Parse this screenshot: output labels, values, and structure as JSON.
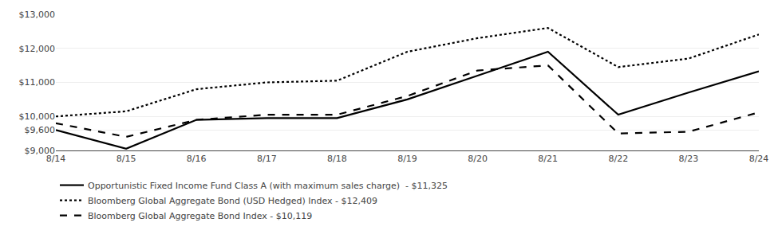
{
  "chart_data": {
    "type": "line",
    "categories": [
      "8/14",
      "8/15",
      "8/16",
      "8/17",
      "8/18",
      "8/19",
      "8/20",
      "8/21",
      "8/22",
      "8/23",
      "8/24"
    ],
    "series": [
      {
        "name": "Opportunistic Fixed Income Fund Class A (with maximum sales charge)  - $11,325",
        "color": "#000000",
        "line_style": "solid",
        "values": [
          9600,
          9050,
          9900,
          9950,
          9950,
          10500,
          11200,
          11900,
          10050,
          10700,
          11325
        ]
      },
      {
        "name": "Bloomberg Global Aggregate Bond (USD Hedged) Index - $12,409",
        "color": "#000000",
        "line_style": "dotted",
        "values": [
          10000,
          10150,
          10800,
          11000,
          11050,
          11900,
          12300,
          12600,
          11450,
          11700,
          12409
        ]
      },
      {
        "name": "Bloomberg Global Aggregate Bond Index - $10,119",
        "color": "#000000",
        "line_style": "dashed",
        "values": [
          9800,
          9400,
          9900,
          10050,
          10050,
          10600,
          11350,
          11500,
          9500,
          9550,
          10119
        ]
      }
    ],
    "ylim": [
      9000,
      13000
    ],
    "yticks": [
      {
        "value": 9000,
        "label": "$9,000"
      },
      {
        "value": 9600,
        "label": "$9,600"
      },
      {
        "value": 10000,
        "label": "$10,000"
      },
      {
        "value": 11000,
        "label": "$11,000"
      },
      {
        "value": 12000,
        "label": "$12,000"
      },
      {
        "value": 13000,
        "label": "$13,000"
      }
    ],
    "grid": true,
    "legend": "lower left"
  }
}
